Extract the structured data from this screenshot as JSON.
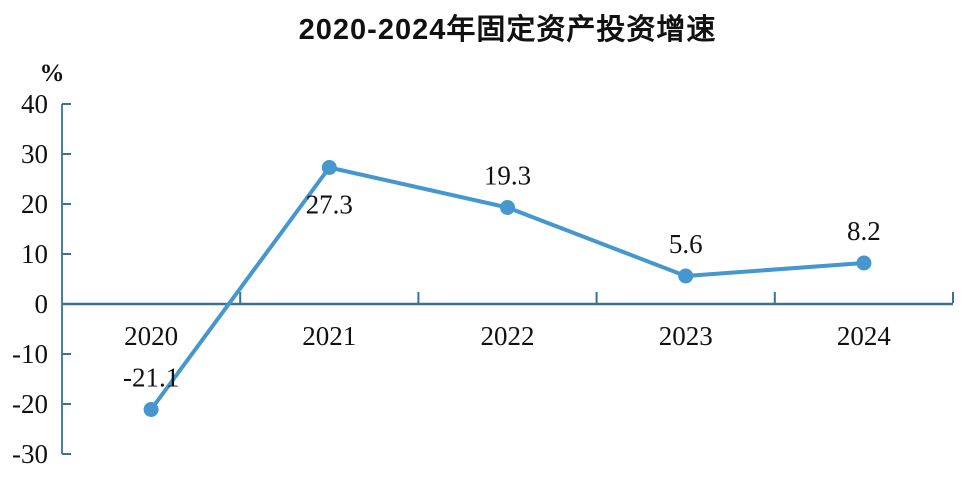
{
  "chart_data": {
    "type": "line",
    "title": "2020-2024年固定资产投资增速",
    "unit_label": "%",
    "categories": [
      "2020",
      "2021",
      "2022",
      "2023",
      "2024"
    ],
    "series": [
      {
        "name": "固定资产投资增速",
        "values": [
          -21.1,
          27.3,
          19.3,
          5.6,
          8.2
        ],
        "value_labels": [
          "-21.1",
          "27.3",
          "19.3",
          "5.6",
          "8.2"
        ],
        "label_positions": [
          "above",
          "below",
          "above",
          "above",
          "above"
        ]
      }
    ],
    "ylim": [
      -30,
      40
    ],
    "ytick_interval": 10,
    "ytick_labels": [
      "40",
      "30",
      "20",
      "10",
      "0",
      "-10",
      "-20",
      "-30"
    ],
    "grid": false,
    "legend": "none",
    "colors": {
      "line": "#4597ce",
      "marker": "#4597ce",
      "axis": "#3a7392",
      "text": "#111111"
    }
  }
}
